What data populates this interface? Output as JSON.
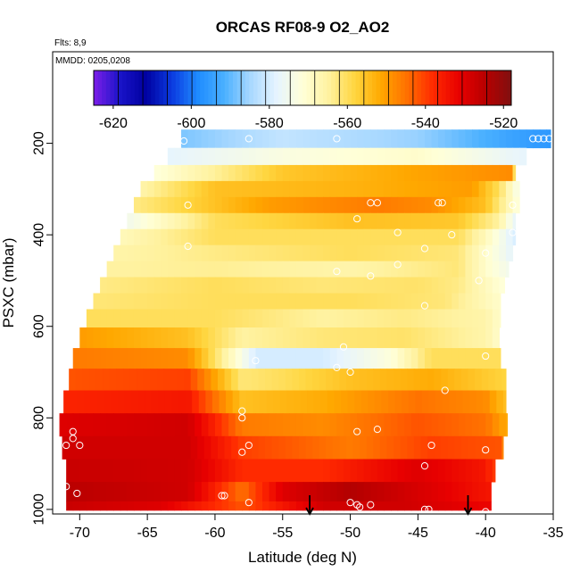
{
  "chart_data": {
    "type": "heatmap",
    "title": "ORCAS RF08-9 O2_AO2",
    "subtitle": "Flts: 8,9",
    "annotation": "MMDD: 0205,0208",
    "xlabel": "Latitude (deg N)",
    "ylabel": "PSXC (mbar)",
    "xlim": [
      -72,
      -35
    ],
    "ylim": [
      1010,
      0
    ],
    "x_ticks": [
      -70,
      -65,
      -60,
      -55,
      -50,
      -45,
      -40,
      -35
    ],
    "y_ticks": [
      200,
      400,
      600,
      800,
      1000
    ],
    "colorbar": {
      "range": [
        -625,
        -518
      ],
      "ticks": [
        -620,
        -600,
        -580,
        -560,
        -540,
        -520
      ],
      "tick_labels": [
        "-620",
        "-600",
        "-580",
        "-560",
        "-540",
        "-520"
      ],
      "colors": [
        "#7c1ee8",
        "#1a14c9",
        "#0000a0",
        "#0b3be0",
        "#1f8cff",
        "#4ab0ff",
        "#a8d8ff",
        "#e6f4ff",
        "#ffffd8",
        "#fff2a0",
        "#ffd640",
        "#ffa800",
        "#ff7000",
        "#ff2a00",
        "#e80000",
        "#b80000",
        "#801010"
      ]
    },
    "layers": [
      {
        "p": 190,
        "lat0": -62.5,
        "lat1": -35.2,
        "stops": [
          [
            -62.5,
            -588
          ],
          [
            -55,
            -582
          ],
          [
            -45,
            -586
          ],
          [
            -38,
            -594
          ],
          [
            -35.2,
            -596
          ]
        ]
      },
      {
        "p": 230,
        "lat0": -63.5,
        "lat1": -37.0,
        "stops": [
          [
            -63.5,
            -578
          ],
          [
            -55,
            -573
          ],
          [
            -45,
            -570
          ],
          [
            -37,
            -578
          ]
        ]
      },
      {
        "p": 265,
        "lat0": -64.5,
        "lat1": -37.8,
        "stops": [
          [
            -64.5,
            -572
          ],
          [
            -55,
            -556
          ],
          [
            -45,
            -551
          ],
          [
            -38,
            -548
          ],
          [
            -37.8,
            -572
          ]
        ]
      },
      {
        "p": 300,
        "lat0": -65.5,
        "lat1": -37.5,
        "stops": [
          [
            -65.5,
            -566
          ],
          [
            -60,
            -555
          ],
          [
            -50,
            -553
          ],
          [
            -41,
            -550
          ],
          [
            -39,
            -560
          ],
          [
            -37.5,
            -575
          ]
        ]
      },
      {
        "p": 335,
        "lat0": -66.0,
        "lat1": -37.5,
        "stops": [
          [
            -66,
            -563
          ],
          [
            -56,
            -550
          ],
          [
            -48,
            -546
          ],
          [
            -44,
            -548
          ],
          [
            -40,
            -555
          ],
          [
            -37.5,
            -573
          ]
        ]
      },
      {
        "p": 370,
        "lat0": -66.5,
        "lat1": -37.8,
        "stops": [
          [
            -66.5,
            -575
          ],
          [
            -60,
            -560
          ],
          [
            -50,
            -555
          ],
          [
            -42,
            -556
          ],
          [
            -39,
            -565
          ],
          [
            -37.8,
            -578
          ]
        ]
      },
      {
        "p": 405,
        "lat0": -67.0,
        "lat1": -37.8,
        "stops": [
          [
            -67,
            -568
          ],
          [
            -60,
            -560
          ],
          [
            -50,
            -560
          ],
          [
            -42,
            -560
          ],
          [
            -40,
            -568
          ],
          [
            -37.8,
            -580
          ]
        ]
      },
      {
        "p": 440,
        "lat0": -67.5,
        "lat1": -38.0,
        "stops": [
          [
            -67.5,
            -566
          ],
          [
            -60,
            -563
          ],
          [
            -50,
            -560
          ],
          [
            -42,
            -562
          ],
          [
            -40,
            -570
          ],
          [
            -38,
            -578
          ]
        ]
      },
      {
        "p": 475,
        "lat0": -68.0,
        "lat1": -38.3,
        "stops": [
          [
            -68,
            -565
          ],
          [
            -60,
            -564
          ],
          [
            -50,
            -566
          ],
          [
            -42,
            -562
          ],
          [
            -40,
            -570
          ],
          [
            -38.3,
            -575
          ]
        ]
      },
      {
        "p": 510,
        "lat0": -68.5,
        "lat1": -38.6,
        "stops": [
          [
            -68.5,
            -563
          ],
          [
            -60,
            -560
          ],
          [
            -52,
            -562
          ],
          [
            -45,
            -561
          ],
          [
            -42,
            -563
          ],
          [
            -38.6,
            -572
          ]
        ]
      },
      {
        "p": 545,
        "lat0": -69.0,
        "lat1": -38.9,
        "stops": [
          [
            -69,
            -562
          ],
          [
            -60,
            -560
          ],
          [
            -50,
            -560
          ],
          [
            -43,
            -562
          ],
          [
            -38.9,
            -570
          ]
        ]
      },
      {
        "p": 580,
        "lat0": -69.5,
        "lat1": -38.9,
        "stops": [
          [
            -69.5,
            -560
          ],
          [
            -60,
            -560
          ],
          [
            -52,
            -565
          ],
          [
            -46,
            -563
          ],
          [
            -40,
            -566
          ],
          [
            -38.9,
            -570
          ]
        ]
      },
      {
        "p": 625,
        "lat0": -70.0,
        "lat1": -39.0,
        "stops": [
          [
            -70,
            -550
          ],
          [
            -62,
            -555
          ],
          [
            -58,
            -565
          ],
          [
            -52,
            -562
          ],
          [
            -46,
            -561
          ],
          [
            -40,
            -566
          ],
          [
            -39,
            -570
          ]
        ]
      },
      {
        "p": 670,
        "lat0": -70.5,
        "lat1": -38.9,
        "stops": [
          [
            -70.5,
            -546
          ],
          [
            -62,
            -548
          ],
          [
            -57,
            -580
          ],
          [
            -52,
            -580
          ],
          [
            -47,
            -572
          ],
          [
            -44,
            -560
          ],
          [
            -39,
            -560
          ]
        ]
      },
      {
        "p": 715,
        "lat0": -70.8,
        "lat1": -38.5,
        "stops": [
          [
            -70.8,
            -542
          ],
          [
            -62,
            -540
          ],
          [
            -58,
            -562
          ],
          [
            -55,
            -560
          ],
          [
            -50,
            -555
          ],
          [
            -44,
            -552
          ],
          [
            -38.5,
            -558
          ]
        ]
      },
      {
        "p": 765,
        "lat0": -71.2,
        "lat1": -38.5,
        "stops": [
          [
            -71.2,
            -537
          ],
          [
            -62,
            -535
          ],
          [
            -58,
            -555
          ],
          [
            -52,
            -552
          ],
          [
            -45,
            -545
          ],
          [
            -40,
            -548
          ],
          [
            -38.5,
            -555
          ]
        ]
      },
      {
        "p": 815,
        "lat0": -71.5,
        "lat1": -38.4,
        "stops": [
          [
            -71.5,
            -530
          ],
          [
            -62,
            -528
          ],
          [
            -58,
            -546
          ],
          [
            -52,
            -548
          ],
          [
            -45,
            -542
          ],
          [
            -40,
            -545
          ],
          [
            -38.4,
            -552
          ]
        ]
      },
      {
        "p": 865,
        "lat0": -71.3,
        "lat1": -38.7,
        "stops": [
          [
            -71.3,
            -528
          ],
          [
            -62,
            -528
          ],
          [
            -58,
            -540
          ],
          [
            -50,
            -546
          ],
          [
            -44,
            -540
          ],
          [
            -39,
            -542
          ],
          [
            -38.7,
            -548
          ]
        ]
      },
      {
        "p": 915,
        "lat0": -71.0,
        "lat1": -39.3,
        "stops": [
          [
            -71,
            -527
          ],
          [
            -62,
            -528
          ],
          [
            -58,
            -538
          ],
          [
            -52,
            -538
          ],
          [
            -45,
            -530
          ],
          [
            -40,
            -535
          ],
          [
            -39.3,
            -540
          ]
        ]
      },
      {
        "p": 965,
        "lat0": -71.0,
        "lat1": -39.6,
        "stops": [
          [
            -71,
            -525
          ],
          [
            -62,
            -528
          ],
          [
            -58,
            -545
          ],
          [
            -55,
            -530
          ],
          [
            -50,
            -524
          ],
          [
            -44,
            -530
          ],
          [
            -39.6,
            -535
          ]
        ]
      },
      {
        "p": 1000,
        "lat0": -71.0,
        "lat1": -39.6,
        "stops": [
          [
            -71,
            -527
          ],
          [
            -64,
            -530
          ],
          [
            -58,
            -542
          ],
          [
            -52,
            -528
          ],
          [
            -46,
            -528
          ],
          [
            -40,
            -532
          ]
        ]
      }
    ],
    "points": [
      [
        -62.3,
        195
      ],
      [
        -57.5,
        190
      ],
      [
        -51,
        190
      ],
      [
        -36.5,
        190
      ],
      [
        -36.1,
        190
      ],
      [
        -35.7,
        190
      ],
      [
        -35.3,
        190
      ],
      [
        -62,
        335
      ],
      [
        -48.5,
        330
      ],
      [
        -48,
        330
      ],
      [
        -43.5,
        330
      ],
      [
        -43.2,
        330
      ],
      [
        -38,
        335
      ],
      [
        -49.5,
        365
      ],
      [
        -46.5,
        395
      ],
      [
        -42.5,
        400
      ],
      [
        -38,
        395
      ],
      [
        -62,
        425
      ],
      [
        -44.5,
        430
      ],
      [
        -40,
        440
      ],
      [
        -46.5,
        465
      ],
      [
        -51,
        480
      ],
      [
        -48.5,
        490
      ],
      [
        -40.5,
        500
      ],
      [
        -44.5,
        555
      ],
      [
        -50.5,
        645
      ],
      [
        -51,
        690
      ],
      [
        -57,
        675
      ],
      [
        -40,
        665
      ],
      [
        -50,
        700
      ],
      [
        -43,
        740
      ],
      [
        -58,
        785
      ],
      [
        -58,
        800
      ],
      [
        -49.5,
        830
      ],
      [
        -48,
        825
      ],
      [
        -70.5,
        830
      ],
      [
        -70.5,
        845
      ],
      [
        -71,
        860
      ],
      [
        -70,
        860
      ],
      [
        -57.5,
        860
      ],
      [
        -58,
        875
      ],
      [
        -44,
        860
      ],
      [
        -40,
        870
      ],
      [
        -44.5,
        905
      ],
      [
        -38.6,
        935
      ],
      [
        -71,
        950
      ],
      [
        -71.3,
        960
      ],
      [
        -70.2,
        965
      ],
      [
        -59.5,
        970
      ],
      [
        -59.3,
        970
      ],
      [
        -57.5,
        985
      ],
      [
        -50,
        985
      ],
      [
        -49.5,
        990
      ],
      [
        -49.3,
        995
      ],
      [
        -48.5,
        990
      ],
      [
        -44.5,
        1000
      ],
      [
        -44.2,
        1000
      ],
      [
        -40,
        1005
      ]
    ],
    "arrows": [
      -53,
      -41.3
    ]
  }
}
